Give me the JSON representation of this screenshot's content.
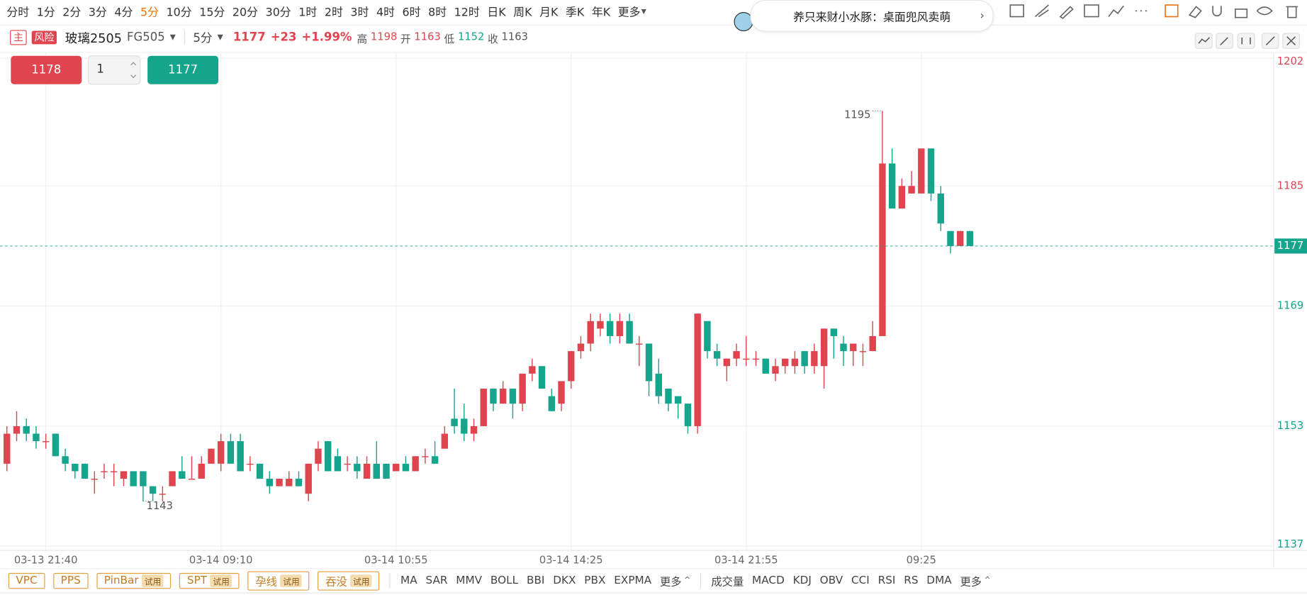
{
  "toolbar": {
    "periods": [
      {
        "label": "分时"
      },
      {
        "label": "1分"
      },
      {
        "label": "2分"
      },
      {
        "label": "3分"
      },
      {
        "label": "4分"
      },
      {
        "label": "5分",
        "active": true
      },
      {
        "label": "10分"
      },
      {
        "label": "15分"
      },
      {
        "label": "20分"
      },
      {
        "label": "30分"
      },
      {
        "label": "1时"
      },
      {
        "label": "2时"
      },
      {
        "label": "3时"
      },
      {
        "label": "4时"
      },
      {
        "label": "6时"
      },
      {
        "label": "8时"
      },
      {
        "label": "12时"
      },
      {
        "label": "日K"
      },
      {
        "label": "周K"
      },
      {
        "label": "月K"
      },
      {
        "label": "季K"
      },
      {
        "label": "年K"
      },
      {
        "label": "更多"
      }
    ],
    "active_color": "#f5720a"
  },
  "banner": "养只来财小水豚：桌面兜风卖萌",
  "header": {
    "main_tag": "主",
    "risk_tag": "风险",
    "name": "玻璃2505",
    "code": "FG505",
    "period": "5分",
    "last": "1177",
    "change": "+23",
    "change_pct": "+1.99%",
    "stats": [
      {
        "label": "高",
        "value": "1198",
        "color": "#e0454f"
      },
      {
        "label": "开",
        "value": "1163",
        "color": "#e0454f"
      },
      {
        "label": "低",
        "value": "1152",
        "color": "#14a58c"
      },
      {
        "label": "收",
        "value": "1163",
        "color": "#555555"
      }
    ]
  },
  "order": {
    "buy": "1178",
    "qty": "1",
    "sell": "1177"
  },
  "indicators": {
    "patterns": [
      {
        "label": "VPC"
      },
      {
        "label": "PPS"
      },
      {
        "label": "PinBar",
        "badge": "试用"
      },
      {
        "label": "SPT",
        "badge": "试用"
      },
      {
        "label": "孕线",
        "badge": "试用"
      },
      {
        "label": "吞没",
        "badge": "试用"
      }
    ],
    "main": [
      "MA",
      "SAR",
      "MMV",
      "BOLL",
      "BBI",
      "DKX",
      "PBX",
      "EXPMA",
      "更多"
    ],
    "sub": [
      "成交量",
      "MACD",
      "KDJ",
      "OBV",
      "CCI",
      "RSI",
      "RS",
      "DMA",
      "更多"
    ]
  },
  "chart_data": {
    "type": "candlestick",
    "categories": [
      null,
      null,
      null,
      null,
      "03-13 21:40",
      null,
      null,
      null,
      null,
      null,
      null,
      null,
      null,
      null,
      null,
      null,
      null,
      null,
      null,
      null,
      null,
      null,
      "03-14 09:10",
      null,
      null,
      null,
      null,
      null,
      null,
      null,
      null,
      null,
      null,
      null,
      null,
      null,
      null,
      null,
      null,
      null,
      "03-14 10:55",
      null,
      null,
      null,
      null,
      null,
      null,
      null,
      null,
      null,
      null,
      null,
      null,
      null,
      null,
      null,
      null,
      null,
      "03-14 14:25",
      null,
      null,
      null,
      null,
      null,
      null,
      null,
      null,
      null,
      null,
      null,
      null,
      null,
      null,
      null,
      null,
      null,
      "03-14 21:55",
      null,
      null,
      null,
      null,
      null,
      null,
      null,
      null,
      null,
      null,
      null,
      null,
      null,
      null,
      null,
      null,
      null,
      "09:25",
      null,
      null,
      null,
      null,
      null
    ],
    "open": [
      1148,
      1152,
      1153,
      1152,
      1151,
      1152,
      1149,
      1148,
      1148,
      1146,
      1147,
      1147,
      1146,
      1147,
      1147,
      1145,
      1144,
      1145,
      1147,
      1146,
      1146,
      1148,
      1148,
      1151,
      1151,
      1148,
      1148,
      1146,
      1145,
      1145,
      1146,
      1144,
      1148,
      1151,
      1149,
      1148,
      1148,
      1146,
      1148,
      1148,
      1147,
      1148,
      1147,
      1149,
      1149,
      1150,
      1154,
      1154,
      1152,
      1153,
      1158,
      1156,
      1158,
      1156,
      1160,
      1161,
      1157,
      1156,
      1159,
      1163,
      1164,
      1166,
      1167,
      1165,
      1167,
      1164,
      1164,
      1160,
      1158,
      1157,
      1156,
      1153,
      1167,
      1163,
      1161,
      1162,
      1162,
      1162,
      1162,
      1160,
      1161,
      1161,
      1163,
      1161,
      1161,
      1166,
      1164,
      1163,
      1163,
      1163,
      1165,
      1188,
      1182,
      1184,
      1184,
      1190,
      1184,
      1179,
      1177,
      1179
    ],
    "high": [
      1153,
      1155,
      1154,
      1153,
      1152,
      1152,
      1150,
      1148,
      1148,
      1147,
      1148,
      1148,
      1147,
      1147,
      1147,
      1145,
      1145,
      1147,
      1149,
      1149,
      1149,
      1150,
      1152,
      1152,
      1152,
      1149,
      1148,
      1147,
      1146,
      1147,
      1147,
      1148,
      1151,
      1151,
      1150,
      1149,
      1149,
      1149,
      1151,
      1148,
      1148,
      1149,
      1149,
      1150,
      1151,
      1153,
      1158,
      1156,
      1154,
      1158,
      1158,
      1159,
      1158,
      1160,
      1162,
      1161,
      1158,
      1159,
      1163,
      1165,
      1168,
      1168,
      1168,
      1168,
      1168,
      1165,
      1164,
      1162,
      1158,
      1157,
      1156,
      1168,
      1167,
      1164,
      1162,
      1164,
      1165,
      1163,
      1162,
      1162,
      1162,
      1163,
      1163,
      1164,
      1166,
      1166,
      1165,
      1164,
      1164,
      1167,
      1195,
      1190,
      1186,
      1187,
      1190,
      1190,
      1185,
      1179,
      1179,
      1179
    ],
    "low": [
      1147,
      1151,
      1151,
      1150,
      1150,
      1149,
      1147,
      1146,
      1146,
      1144,
      1146,
      1145,
      1145,
      1145,
      1143,
      1143,
      1143,
      1145,
      1146,
      1146,
      1146,
      1148,
      1147,
      1148,
      1147,
      1147,
      1146,
      1144,
      1145,
      1145,
      1145,
      1143,
      1147,
      1147,
      1147,
      1147,
      1146,
      1146,
      1146,
      1146,
      1147,
      1147,
      1147,
      1148,
      1148,
      1150,
      1152,
      1151,
      1151,
      1153,
      1155,
      1156,
      1154,
      1155,
      1159,
      1158,
      1155,
      1155,
      1158,
      1162,
      1163,
      1165,
      1164,
      1164,
      1164,
      1161,
      1157,
      1156,
      1155,
      1154,
      1152,
      1152,
      1162,
      1161,
      1159,
      1161,
      1161,
      1161,
      1160,
      1159,
      1160,
      1160,
      1160,
      1160,
      1158,
      1162,
      1161,
      1161,
      1161,
      1163,
      1165,
      1182,
      1182,
      1184,
      1184,
      1183,
      1179,
      1176,
      1177,
      1177
    ],
    "close": [
      1152,
      1153,
      1152,
      1151,
      1151,
      1149,
      1148,
      1147,
      1146,
      1146,
      1147,
      1147,
      1147,
      1145,
      1145,
      1144,
      1144,
      1147,
      1146,
      1146,
      1148,
      1150,
      1151,
      1148,
      1147,
      1148,
      1146,
      1145,
      1146,
      1146,
      1145,
      1148,
      1150,
      1147,
      1147,
      1148,
      1147,
      1148,
      1146,
      1146,
      1148,
      1147,
      1149,
      1149,
      1148,
      1152,
      1153,
      1152,
      1153,
      1158,
      1156,
      1158,
      1156,
      1160,
      1161,
      1158,
      1155,
      1159,
      1163,
      1164,
      1167,
      1167,
      1165,
      1167,
      1164,
      1164,
      1159,
      1157,
      1156,
      1156,
      1153,
      1168,
      1163,
      1162,
      1162,
      1163,
      1162,
      1162,
      1160,
      1161,
      1162,
      1162,
      1161,
      1163,
      1166,
      1165,
      1163,
      1164,
      1163,
      1165,
      1188,
      1182,
      1185,
      1185,
      1190,
      1184,
      1180,
      1177,
      1179,
      1177
    ],
    "ylim": [
      1137,
      1202
    ],
    "yticks": [
      1137,
      1153,
      1169,
      1185,
      1202
    ],
    "last_price": 1177,
    "max_label": "1195",
    "min_label": "1143",
    "up_color": "#e0454f",
    "down_color": "#14a58c",
    "grid": true
  }
}
